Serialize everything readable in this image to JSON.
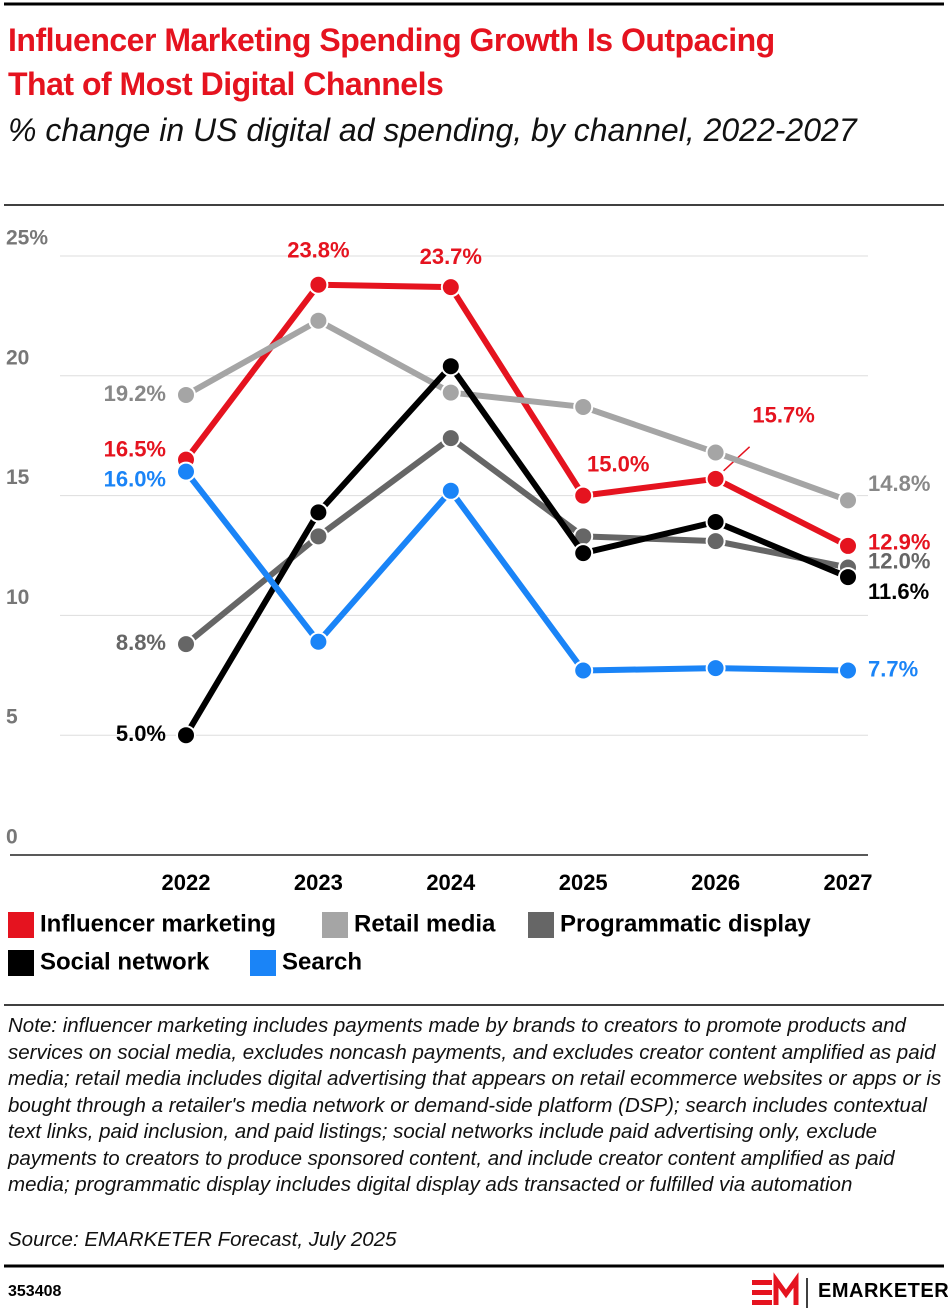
{
  "chart_data": {
    "type": "line",
    "title": "Influencer Marketing Spending Growth Is Outpacing That of Most Digital Channels",
    "subtitle": "% change in US digital ad spending, by channel, 2022-2027",
    "categories": [
      "2022",
      "2023",
      "2024",
      "2025",
      "2026",
      "2027"
    ],
    "series": [
      {
        "name": "Influencer marketing",
        "color": "#e5131f",
        "values": [
          16.5,
          23.8,
          23.7,
          15.0,
          15.7,
          12.9
        ],
        "value_labels": [
          "16.5%",
          "23.8%",
          "23.7%",
          "15.0%",
          "15.7%",
          "12.9%"
        ]
      },
      {
        "name": "Retail media",
        "color": "#a5a5a5",
        "values": [
          19.2,
          22.3,
          19.3,
          18.7,
          16.8,
          14.8
        ],
        "value_labels": [
          "19.2%",
          null,
          null,
          null,
          null,
          "14.8%"
        ]
      },
      {
        "name": "Programmatic display",
        "color": "#666666",
        "values": [
          8.8,
          13.3,
          17.4,
          13.3,
          13.1,
          12.0
        ],
        "value_labels": [
          "8.8%",
          null,
          null,
          null,
          null,
          "12.0%"
        ]
      },
      {
        "name": "Social network",
        "color": "#000000",
        "values": [
          5.0,
          14.3,
          20.4,
          12.6,
          13.9,
          11.6
        ],
        "value_labels": [
          "5.0%",
          null,
          null,
          null,
          null,
          "11.6%"
        ]
      },
      {
        "name": "Search",
        "color": "#1a84f7",
        "values": [
          16.0,
          8.9,
          15.2,
          7.7,
          7.8,
          7.7
        ],
        "value_labels": [
          "16.0%",
          null,
          null,
          null,
          null,
          "7.7%"
        ]
      }
    ],
    "ylim": [
      0,
      25
    ],
    "yticks": [
      0,
      5,
      10,
      15,
      20,
      {
        "value": 25,
        "label": "25%"
      }
    ],
    "grid": true,
    "note": "Note: influencer marketing includes payments made by brands to creators to promote products and services on social media, excludes noncash payments, and excludes creator content amplified as paid media; retail media includes digital advertising that appears on retail ecommerce websites or apps or is bought through a retailer's media network or demand-side platform (DSP); search includes contextual text links, paid inclusion, and paid listings; social networks include paid advertising only, exclude payments to creators to produce sponsored content, and include creator content amplified as paid media; programmatic display includes digital display ads transacted or fulfilled via automation",
    "source": "Source: EMARKETER Forecast, July 2025",
    "chart_id": "353408",
    "brand": "EMARKETER"
  }
}
